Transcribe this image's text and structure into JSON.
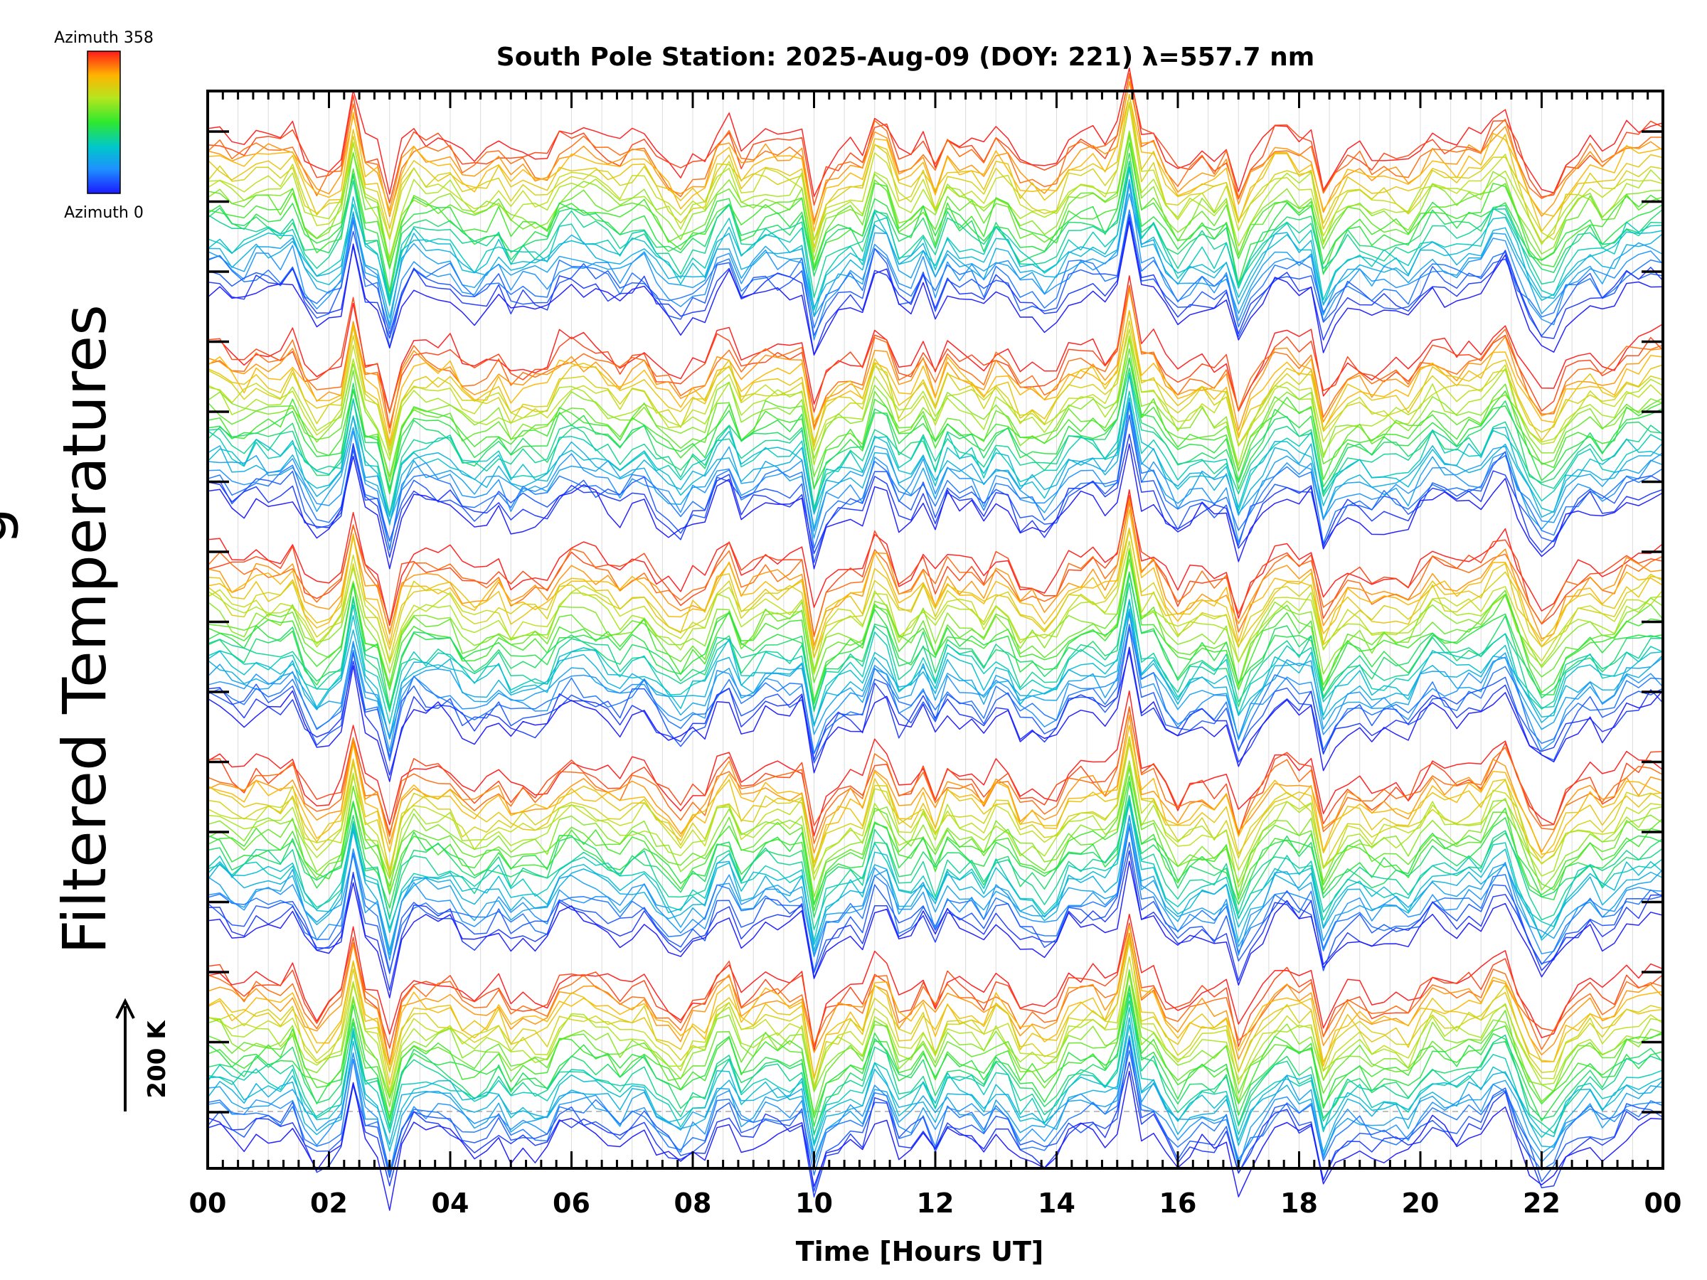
{
  "chart_data": {
    "type": "line",
    "title": "South Pole Station: 2025-Aug-09 (DOY: 221) λ=557.7 nm",
    "xlabel": "Time [Hours UT]",
    "ylabel": "Filtered Temperatures",
    "ylabel_cut": "g",
    "scale_label": "200 K",
    "xlim": [
      0,
      24
    ],
    "x_ticks": [
      "00",
      "02",
      "04",
      "06",
      "08",
      "10",
      "12",
      "14",
      "16",
      "18",
      "20",
      "22",
      "00"
    ],
    "x_tick_values": [
      0,
      2,
      4,
      6,
      8,
      10,
      12,
      14,
      16,
      18,
      20,
      22,
      24
    ],
    "groups": 5,
    "traces_per_group": 24,
    "sample_hours": 0.2,
    "trace_amplitude_K": 60,
    "colorbar": {
      "min_label": "Azimuth 0",
      "max_label": "Azimuth 358",
      "min": 0,
      "max": 358,
      "colormap": "rainbow (blue to red)",
      "stops": [
        "#1a1aff",
        "#1e90ff",
        "#00c8c8",
        "#2ee82e",
        "#b4e61e",
        "#ffb400",
        "#ff1a1a"
      ]
    },
    "events": [
      {
        "t": 2.4,
        "amp": 4.0
      },
      {
        "t": 3.0,
        "amp": -3.0
      },
      {
        "t": 8.5,
        "amp": 2.0
      },
      {
        "t": 10.0,
        "amp": -3.0
      },
      {
        "t": 11.1,
        "amp": 4.5
      },
      {
        "t": 12.0,
        "amp": -2.0
      },
      {
        "t": 15.2,
        "amp": 5.0
      },
      {
        "t": 17.0,
        "amp": -3.5
      },
      {
        "t": 18.4,
        "amp": -3.0
      },
      {
        "t": 21.3,
        "amp": 2.5
      },
      {
        "t": 22.1,
        "amp": -2.5
      }
    ],
    "colors": {
      "axis": "#000000",
      "gridline": "#dcdcdc",
      "baseline": "#aaaaaa"
    }
  }
}
